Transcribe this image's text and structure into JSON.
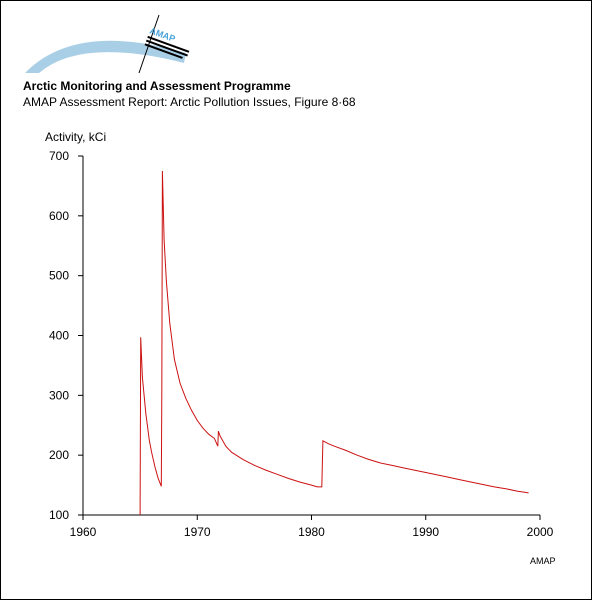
{
  "header": {
    "org_title": "Arctic Monitoring and Assessment Programme",
    "report_line": "AMAP Assessment Report: Arctic Pollution Issues, Figure 8·68",
    "credit": "AMAP"
  },
  "logo": {
    "text": "AMAP",
    "arc_color": "#a9cfe6",
    "text_color": "#4aa3d8"
  },
  "chart_data": {
    "type": "line",
    "title": "",
    "xlabel": "",
    "ylabel": "Activity, kCi",
    "xlim": [
      1960,
      2000
    ],
    "ylim": [
      100,
      700
    ],
    "x_ticks": [
      "1960",
      "1970",
      "1980",
      "1990",
      "2000"
    ],
    "y_ticks": [
      "100",
      "200",
      "300",
      "400",
      "500",
      "600",
      "700"
    ],
    "line_color": "#cc1111",
    "series": [
      {
        "x": [
          1965.0,
          1965.05,
          1965.2,
          1965.5,
          1965.8,
          1966.0,
          1966.3,
          1966.6,
          1966.85,
          1966.9,
          1966.95,
          1967.1,
          1967.3,
          1967.6,
          1968.0,
          1968.5,
          1969.0,
          1969.5,
          1970.0,
          1970.5,
          1971.0,
          1971.5,
          1971.8,
          1971.85,
          1972.0,
          1972.5,
          1973.0,
          1974.0,
          1975.0,
          1976.0,
          1977.0,
          1978.0,
          1979.0,
          1980.0,
          1980.5,
          1980.9,
          1981.0,
          1981.5,
          1982.0,
          1983.0,
          1984.0,
          1985.0,
          1986.0,
          1987.0,
          1988.0,
          1989.0,
          1990.0,
          1991.0,
          1992.0,
          1993.0,
          1994.0,
          1995.0,
          1996.0,
          1997.0,
          1998.0,
          1999.0
        ],
        "y": [
          100,
          397,
          330,
          270,
          225,
          205,
          180,
          160,
          148,
          300,
          675,
          560,
          490,
          420,
          360,
          320,
          295,
          275,
          258,
          245,
          235,
          228,
          215,
          240,
          232,
          215,
          205,
          193,
          183,
          175,
          168,
          161,
          155,
          150,
          147,
          147,
          224,
          219,
          215,
          208,
          200,
          193,
          187,
          183,
          179,
          175,
          171,
          167,
          163,
          159,
          155,
          151,
          147,
          144,
          140,
          137
        ]
      }
    ]
  }
}
